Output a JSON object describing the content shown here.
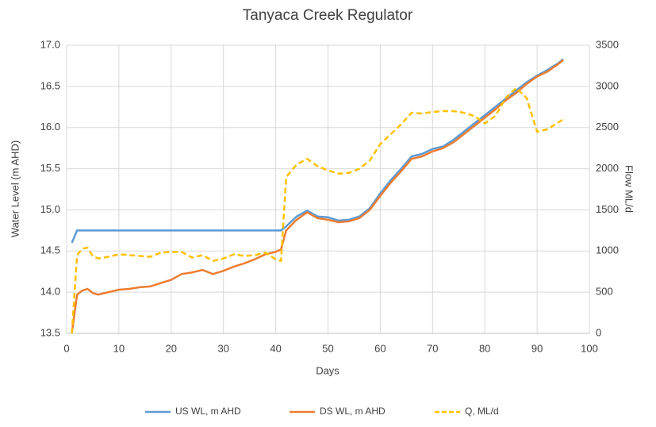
{
  "chart_data": {
    "type": "line",
    "title": "Tanyaca Creek Regulator",
    "x_label": "Days",
    "y_label": "Water Level (m AHD)",
    "y2_label": "Flow ML/d",
    "x": [
      1,
      2,
      3,
      4,
      5,
      6,
      8,
      10,
      12,
      14,
      16,
      18,
      20,
      22,
      24,
      26,
      28,
      30,
      32,
      34,
      36,
      38,
      40,
      41,
      42,
      44,
      46,
      48,
      50,
      52,
      54,
      56,
      58,
      60,
      62,
      64,
      66,
      68,
      70,
      72,
      74,
      76,
      78,
      80,
      82,
      84,
      86,
      88,
      90,
      92,
      94,
      95
    ],
    "series": [
      {
        "name": "US WL, m AHD",
        "color": "#5b9bd5",
        "axis": "y",
        "values": [
          14.6,
          14.75,
          14.75,
          14.75,
          14.75,
          14.75,
          14.75,
          14.75,
          14.75,
          14.75,
          14.75,
          14.75,
          14.75,
          14.75,
          14.75,
          14.75,
          14.75,
          14.75,
          14.75,
          14.75,
          14.75,
          14.75,
          14.75,
          14.75,
          14.8,
          14.92,
          14.99,
          14.92,
          14.91,
          14.87,
          14.88,
          14.92,
          15.02,
          15.2,
          15.36,
          15.5,
          15.65,
          15.68,
          15.74,
          15.77,
          15.85,
          15.95,
          16.05,
          16.15,
          16.25,
          16.35,
          16.45,
          16.55,
          16.63,
          16.7,
          16.78,
          16.83
        ]
      },
      {
        "name": "DS WL, m AHD",
        "color": "#ed7d31",
        "axis": "y",
        "values": [
          13.5,
          13.97,
          14.02,
          14.04,
          13.99,
          13.97,
          14.0,
          14.03,
          14.04,
          14.06,
          14.07,
          14.11,
          14.15,
          14.22,
          14.24,
          14.27,
          14.22,
          14.26,
          14.31,
          14.35,
          14.4,
          14.46,
          14.49,
          14.52,
          14.75,
          14.88,
          14.97,
          14.9,
          14.88,
          14.85,
          14.86,
          14.9,
          15.0,
          15.17,
          15.33,
          15.47,
          15.62,
          15.65,
          15.71,
          15.75,
          15.82,
          15.92,
          16.02,
          16.12,
          16.22,
          16.33,
          16.42,
          16.53,
          16.62,
          16.68,
          16.77,
          16.82
        ]
      },
      {
        "name": "Q, ML/d",
        "color": "#ffc000",
        "axis": "y2",
        "dashed": true,
        "values": [
          0,
          950,
          1030,
          1040,
          940,
          910,
          930,
          960,
          950,
          940,
          930,
          980,
          990,
          990,
          920,
          950,
          880,
          910,
          960,
          940,
          950,
          980,
          900,
          880,
          1900,
          2050,
          2120,
          2030,
          1980,
          1940,
          1950,
          2000,
          2100,
          2300,
          2420,
          2540,
          2680,
          2670,
          2690,
          2700,
          2700,
          2680,
          2640,
          2550,
          2640,
          2860,
          2980,
          2860,
          2450,
          2480,
          2560,
          2600
        ]
      }
    ],
    "xlim": [
      0,
      100
    ],
    "xticks": [
      0,
      10,
      20,
      30,
      40,
      50,
      60,
      70,
      80,
      90,
      100
    ],
    "ylim": [
      13.5,
      17.0
    ],
    "yticks": [
      13.5,
      {
        "value": 14,
        "label": "14.0"
      },
      14.5,
      {
        "value": 15,
        "label": "15.0"
      },
      15.5,
      {
        "value": 16,
        "label": "16.0"
      },
      16.5,
      {
        "value": 17,
        "label": "17.0"
      }
    ],
    "y2lim": [
      0,
      3500
    ],
    "y2ticks": [
      0,
      500,
      1000,
      1500,
      2000,
      2500,
      3000,
      3500
    ],
    "grid": true,
    "legend": "bottom"
  }
}
